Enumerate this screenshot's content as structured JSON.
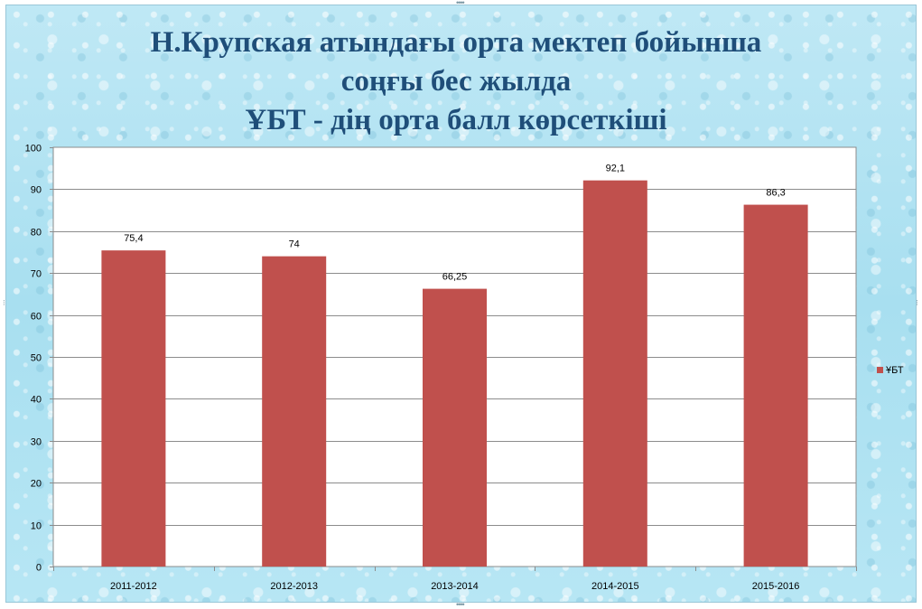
{
  "chart_data": {
    "type": "bar",
    "title_lines": [
      "Н.Крупская атындағы орта мектеп бойынша",
      "соңғы бес жылда",
      "ҰБТ - дің орта балл көрсеткіші"
    ],
    "categories": [
      "2011-2012",
      "2012-2013",
      "2013-2014",
      "2014-2015",
      "2015-2016"
    ],
    "series": [
      {
        "name": "ҰБТ",
        "values": [
          75.4,
          74,
          66.25,
          92.1,
          86.3
        ],
        "color": "#c0504d"
      }
    ],
    "data_labels": [
      "75,4",
      "74",
      "66,25",
      "92,1",
      "86,3"
    ],
    "ylim": [
      0,
      100
    ],
    "y_ticks": [
      0,
      10,
      20,
      30,
      40,
      50,
      60,
      70,
      80,
      90,
      100
    ],
    "grid": true,
    "legend_position": "right",
    "xlabel": "",
    "ylabel": ""
  }
}
